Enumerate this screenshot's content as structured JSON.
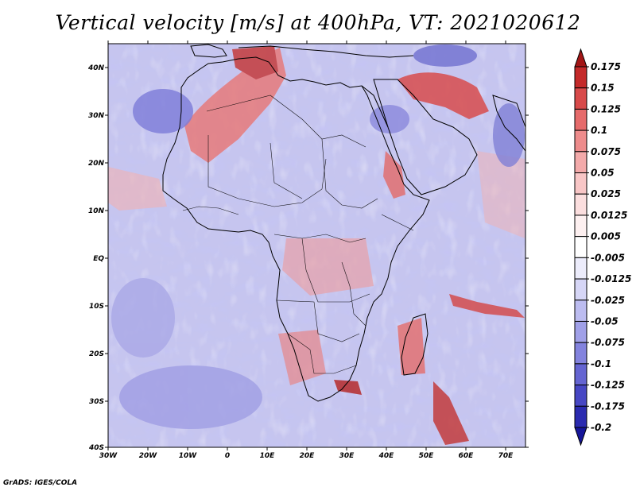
{
  "title": "Vertical velocity [m/s] at 400hPa, VT: 2021020612",
  "credit": "GrADS: IGES/COLA",
  "map": {
    "lat_labels": [
      "40N",
      "30N",
      "20N",
      "10N",
      "EQ",
      "10S",
      "20S",
      "30S",
      "40S"
    ],
    "lon_labels": [
      "30W",
      "20W",
      "10W",
      "0",
      "10E",
      "20E",
      "30E",
      "40E",
      "50E",
      "60E",
      "70E"
    ]
  },
  "colorbar": {
    "labels": [
      "0.175",
      "0.15",
      "0.125",
      "0.1",
      "0.075",
      "0.05",
      "0.025",
      "0.0125",
      "0.005",
      "-0.005",
      "-0.0125",
      "-0.025",
      "-0.05",
      "-0.075",
      "-0.1",
      "-0.125",
      "-0.175",
      "-0.2"
    ],
    "colors": [
      "#a31616",
      "#c42a2a",
      "#d84a4a",
      "#e66b6b",
      "#ee8c8c",
      "#f3aaaa",
      "#f8c6c6",
      "#fbdede",
      "#fdf0f0",
      "#ffffff",
      "#ececfb",
      "#d6d6f6",
      "#bcbcf0",
      "#a0a0e8",
      "#8383de",
      "#6565d2",
      "#4747c4",
      "#2b2bb0",
      "#16169a"
    ]
  },
  "legend_colors": {
    "ocean_base": "#c3c3ee",
    "land_base": "#dedcf3",
    "coast": "#000000"
  }
}
